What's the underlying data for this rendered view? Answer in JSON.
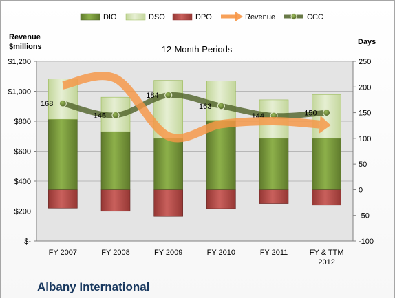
{
  "chart_data": {
    "type": "bar",
    "title": "12-Month Periods",
    "company": "Albany International",
    "left_axis_title": [
      "Revenue",
      "$millions"
    ],
    "right_axis_title": "Days",
    "categories": [
      [
        "FY 2007"
      ],
      [
        "FY 2008"
      ],
      [
        "FY 2009"
      ],
      [
        "FY 2010"
      ],
      [
        "FY 2011"
      ],
      [
        "FY & TTM",
        "2012"
      ]
    ],
    "left_axis": {
      "min": 0,
      "max": 1200,
      "step": 200,
      "tick_labels": [
        "$-",
        "$200",
        "$400",
        "$600",
        "$800",
        "$1,000",
        "$1,200"
      ]
    },
    "right_axis": {
      "min": -100,
      "max": 250,
      "step": 50,
      "tick_labels": [
        "-100",
        "-50",
        "0",
        "50",
        "100",
        "150",
        "200",
        "250"
      ]
    },
    "grid": true,
    "legend_position": "top",
    "legend": [
      "DIO",
      "DSO",
      "DPO",
      "Revenue",
      "CCC"
    ],
    "series": [
      {
        "name": "DIO",
        "axis": "right",
        "kind": "stacked-bar",
        "values": [
          137,
          113,
          100,
          135,
          100,
          100
        ],
        "color": "#77933c"
      },
      {
        "name": "DSO",
        "axis": "right",
        "kind": "stacked-bar",
        "values": [
          79,
          67,
          113,
          77,
          75,
          85
        ],
        "color": "#d7e4bd"
      },
      {
        "name": "DPO",
        "axis": "right",
        "kind": "negative-bar",
        "values": [
          -36,
          -42,
          -52,
          -37,
          -27,
          -30
        ],
        "color": "#c0504d"
      },
      {
        "name": "Revenue",
        "axis": "left",
        "kind": "line",
        "values": [
          1040,
          1085,
          700,
          780,
          800,
          775
        ],
        "color": "#f79646"
      },
      {
        "name": "CCC",
        "axis": "right",
        "kind": "line",
        "values": [
          168,
          145,
          184,
          163,
          144,
          150
        ],
        "color": "#4f6228"
      }
    ],
    "data_labels": [
      "168",
      "145",
      "184",
      "163",
      "144",
      "150"
    ]
  }
}
